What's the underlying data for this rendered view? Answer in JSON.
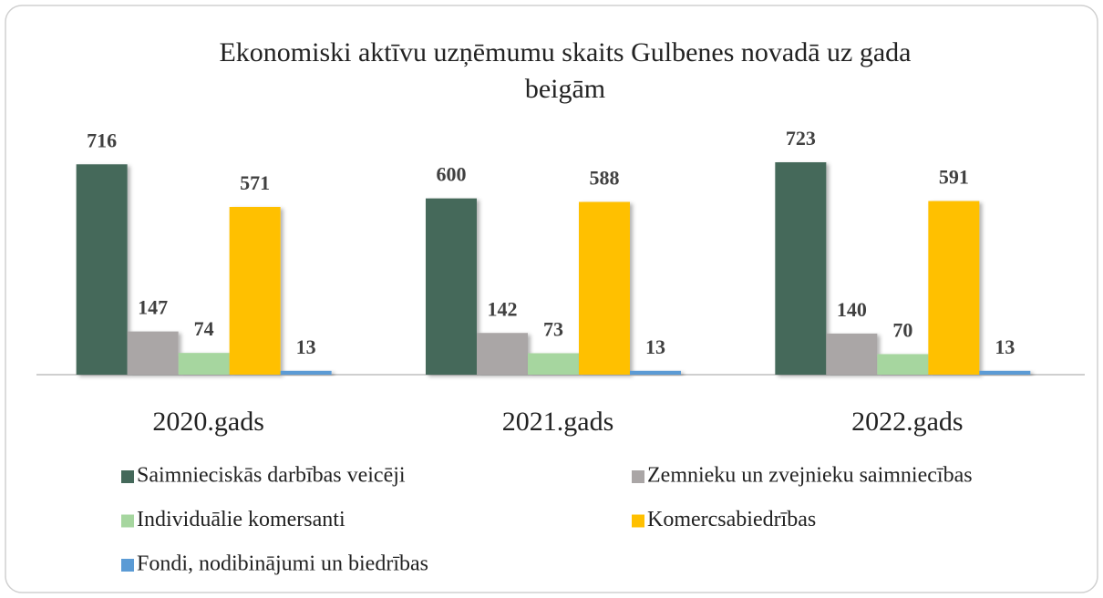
{
  "chart_data": {
    "type": "bar",
    "title": [
      "Ekonomiski aktīvu uzņēmumu skaits Gulbenes novadā uz gada",
      "beigām"
    ],
    "categories": [
      "2020.gads",
      "2021.gads",
      "2022.gads"
    ],
    "series": [
      {
        "name": "Saimnieciskās darbības veicēji",
        "color": "#44695a",
        "values": [
          716,
          600,
          723
        ]
      },
      {
        "name": "Zemnieku un zvejnieku saimniecības",
        "color": "#aaa6a6",
        "values": [
          147,
          142,
          140
        ]
      },
      {
        "name": "Individuālie komersanti",
        "color": "#a6d69f",
        "values": [
          74,
          73,
          70
        ]
      },
      {
        "name": "Komercsabiedrības",
        "color": "#ffc000",
        "values": [
          571,
          588,
          591
        ]
      },
      {
        "name": "Fondi, nodibinājumi un biedrības",
        "color": "#5b9bd5",
        "values": [
          13,
          13,
          13
        ]
      }
    ]
  }
}
